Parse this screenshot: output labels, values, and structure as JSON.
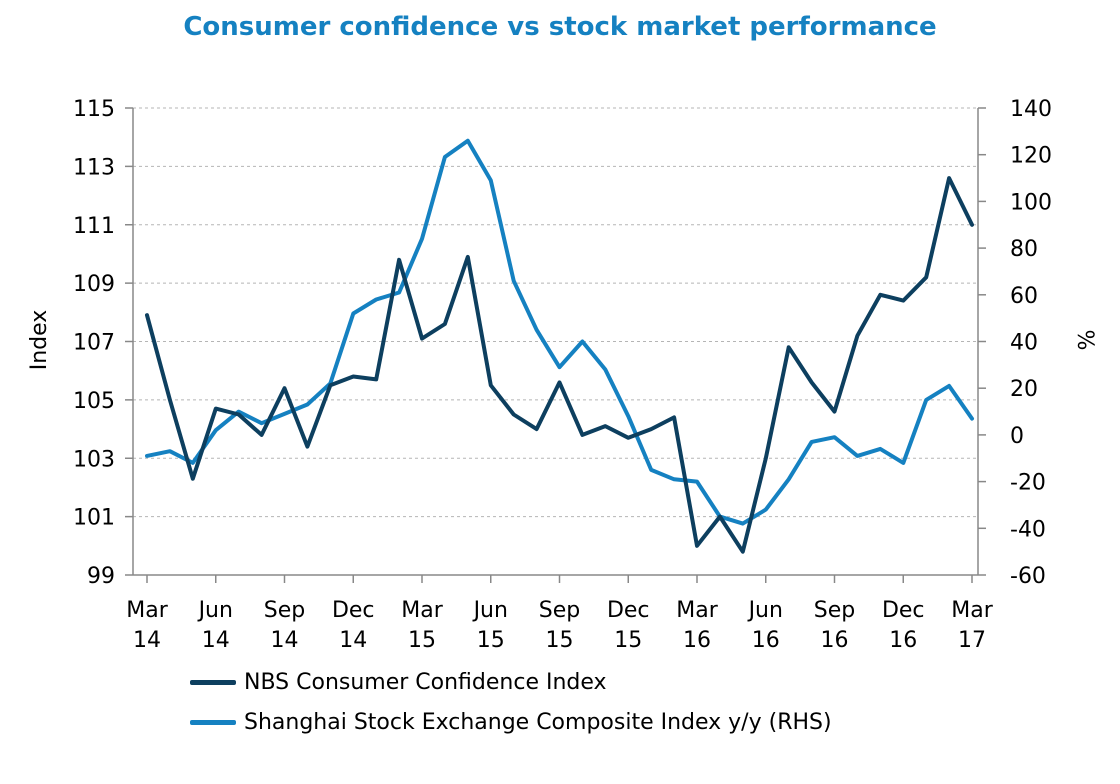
{
  "chart_data": {
    "type": "line",
    "title": "Consumer confidence vs stock market performance",
    "ylabel": "Index",
    "y2label": "%",
    "ylim": [
      99,
      115
    ],
    "y2lim": [
      -60,
      140
    ],
    "yticks": [
      99,
      101,
      103,
      105,
      107,
      109,
      111,
      113,
      115
    ],
    "y2ticks": [
      -60,
      -40,
      -20,
      0,
      20,
      40,
      60,
      80,
      100,
      120,
      140
    ],
    "x_tick_labels": [
      {
        "month": "Mar",
        "year": "14"
      },
      {
        "month": "Jun",
        "year": "14"
      },
      {
        "month": "Sep",
        "year": "14"
      },
      {
        "month": "Dec",
        "year": "14"
      },
      {
        "month": "Mar",
        "year": "15"
      },
      {
        "month": "Jun",
        "year": "15"
      },
      {
        "month": "Sep",
        "year": "15"
      },
      {
        "month": "Dec",
        "year": "15"
      },
      {
        "month": "Mar",
        "year": "16"
      },
      {
        "month": "Jun",
        "year": "16"
      },
      {
        "month": "Sep",
        "year": "16"
      },
      {
        "month": "Dec",
        "year": "16"
      },
      {
        "month": "Mar",
        "year": "17"
      }
    ],
    "series": [
      {
        "name": "NBS Consumer Confidence Index",
        "axis": "left",
        "color": "#0d3f5f",
        "values": [
          107.9,
          105.0,
          102.3,
          104.7,
          104.5,
          103.8,
          105.4,
          103.4,
          105.5,
          105.8,
          105.7,
          109.8,
          107.1,
          107.6,
          109.9,
          105.5,
          104.5,
          104.0,
          105.6,
          103.8,
          104.1,
          103.7,
          104.0,
          104.4,
          100.0,
          101.0,
          99.8,
          103.0,
          106.8,
          105.6,
          104.6,
          107.2,
          108.6,
          108.4,
          109.2,
          112.6,
          111.0
        ]
      },
      {
        "name": "Shanghai Stock Exchange Composite Index y/y (RHS)",
        "axis": "right",
        "color": "#1581c1",
        "values": [
          -9,
          -7,
          -12,
          2,
          10,
          5,
          9,
          13,
          22,
          52,
          58,
          61,
          84,
          119,
          126,
          109,
          66,
          45,
          29,
          40,
          28,
          8,
          -15,
          -19,
          -20,
          -35,
          -38,
          -32,
          -19,
          -3,
          -1,
          -9,
          -6,
          -12,
          15,
          21,
          7
        ]
      }
    ]
  }
}
